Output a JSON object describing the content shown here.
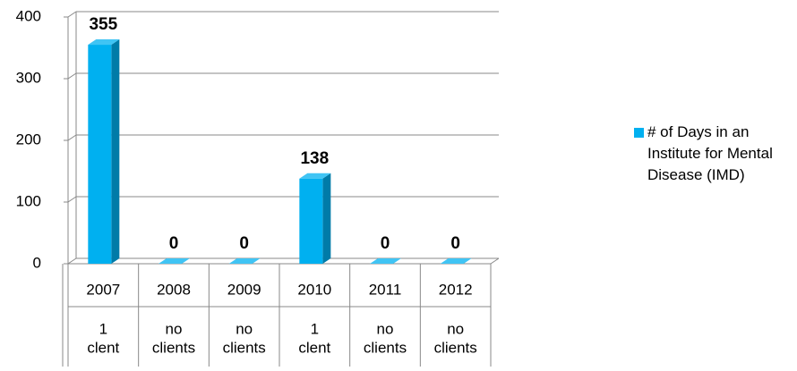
{
  "chart_data": {
    "type": "bar3d",
    "categories": [
      "2007",
      "2008",
      "2009",
      "2010",
      "2011",
      "2012"
    ],
    "sublabels": [
      [
        "1",
        "clent"
      ],
      [
        "no",
        "clients"
      ],
      [
        "no",
        "clients"
      ],
      [
        "1",
        "clent"
      ],
      [
        "no",
        "clients"
      ],
      [
        "no",
        "clients"
      ]
    ],
    "series": [
      {
        "name": "# of Days in an Institute for Mental Disease (IMD)",
        "color": "#00b0f0",
        "values": [
          355,
          0,
          0,
          138,
          0,
          0
        ]
      }
    ],
    "ylim": [
      0,
      400
    ],
    "yticks": [
      0,
      100,
      200,
      300,
      400
    ],
    "grid": true,
    "legend": "right"
  }
}
